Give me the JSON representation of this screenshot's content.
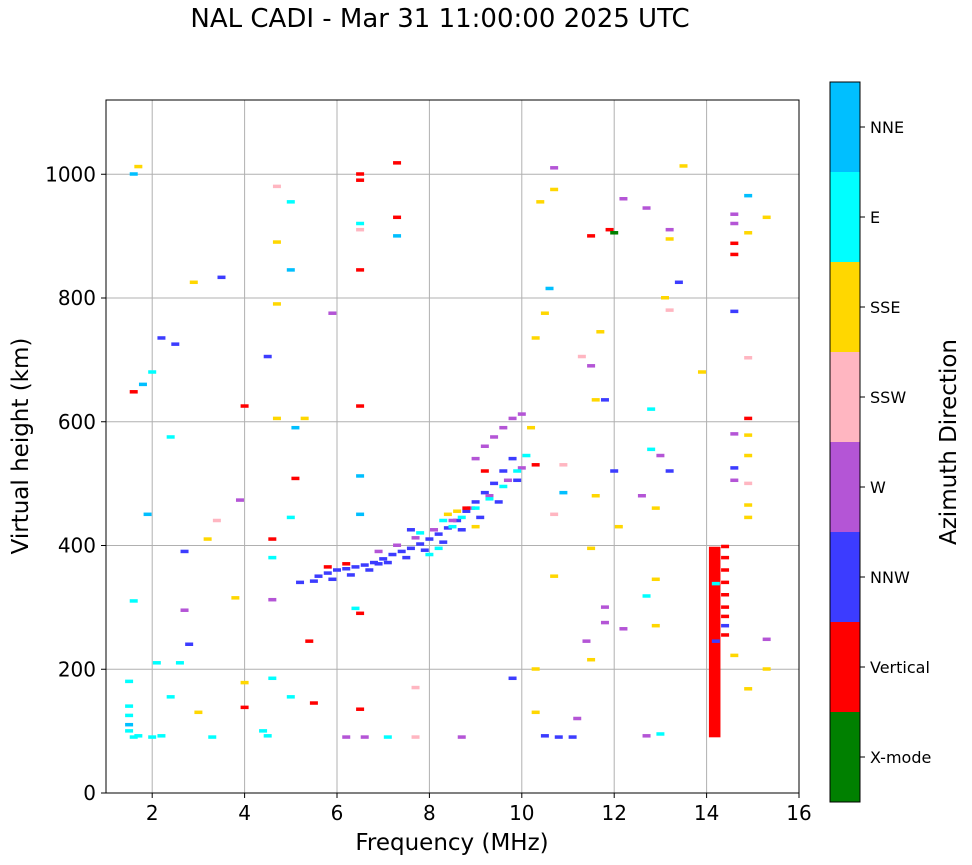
{
  "chart_data": {
    "type": "scatter",
    "title": "NAL CADI - Mar 31 11:00:00 2025 UTC",
    "xlabel": "Frequency (MHz)",
    "ylabel": "Virtual height (km)",
    "xlim": [
      1.0,
      16.0
    ],
    "ylim": [
      0,
      1120
    ],
    "xticks": [
      2,
      4,
      6,
      8,
      10,
      12,
      14,
      16
    ],
    "yticks": [
      0,
      200,
      400,
      600,
      800,
      1000
    ],
    "grid": true,
    "colorbar": {
      "label": "Azimuth Direction",
      "categories": [
        {
          "name": "X-mode",
          "color": "#008000"
        },
        {
          "name": "Vertical",
          "color": "#ff0000"
        },
        {
          "name": "NNW",
          "color": "#3c3cff"
        },
        {
          "name": "W",
          "color": "#b455d6"
        },
        {
          "name": "SSW",
          "color": "#ffb6c1"
        },
        {
          "name": "SSE",
          "color": "#ffd700"
        },
        {
          "name": "E",
          "color": "#00ffff"
        },
        {
          "name": "NNE",
          "color": "#00bfff"
        }
      ]
    },
    "vertical_column": {
      "x_start": 14.05,
      "x_end": 14.3,
      "y_start": 90,
      "y_end": 398,
      "direction": "Vertical"
    },
    "points": [
      {
        "x": 5.6,
        "y": 350,
        "d": "NNW"
      },
      {
        "x": 5.8,
        "y": 355,
        "d": "NNW"
      },
      {
        "x": 6.0,
        "y": 360,
        "d": "NNW"
      },
      {
        "x": 6.2,
        "y": 362,
        "d": "NNW"
      },
      {
        "x": 6.4,
        "y": 365,
        "d": "NNW"
      },
      {
        "x": 6.6,
        "y": 368,
        "d": "NNW"
      },
      {
        "x": 6.8,
        "y": 372,
        "d": "NNW"
      },
      {
        "x": 7.0,
        "y": 378,
        "d": "NNW"
      },
      {
        "x": 7.2,
        "y": 385,
        "d": "NNW"
      },
      {
        "x": 7.4,
        "y": 390,
        "d": "NNW"
      },
      {
        "x": 7.6,
        "y": 395,
        "d": "NNW"
      },
      {
        "x": 7.8,
        "y": 402,
        "d": "NNW"
      },
      {
        "x": 8.0,
        "y": 410,
        "d": "NNW"
      },
      {
        "x": 8.2,
        "y": 418,
        "d": "NNW"
      },
      {
        "x": 8.4,
        "y": 428,
        "d": "NNW"
      },
      {
        "x": 8.6,
        "y": 440,
        "d": "NNW"
      },
      {
        "x": 8.8,
        "y": 455,
        "d": "NNW"
      },
      {
        "x": 9.0,
        "y": 470,
        "d": "NNW"
      },
      {
        "x": 9.2,
        "y": 485,
        "d": "NNW"
      },
      {
        "x": 9.4,
        "y": 500,
        "d": "NNW"
      },
      {
        "x": 9.6,
        "y": 520,
        "d": "NNW"
      },
      {
        "x": 9.8,
        "y": 540,
        "d": "NNW"
      },
      {
        "x": 5.5,
        "y": 342,
        "d": "NNW"
      },
      {
        "x": 5.9,
        "y": 345,
        "d": "NNW"
      },
      {
        "x": 6.3,
        "y": 352,
        "d": "NNW"
      },
      {
        "x": 6.7,
        "y": 360,
        "d": "NNW"
      },
      {
        "x": 7.1,
        "y": 372,
        "d": "NNW"
      },
      {
        "x": 7.5,
        "y": 380,
        "d": "NNW"
      },
      {
        "x": 7.9,
        "y": 392,
        "d": "NNW"
      },
      {
        "x": 8.3,
        "y": 405,
        "d": "NNW"
      },
      {
        "x": 8.7,
        "y": 425,
        "d": "NNW"
      },
      {
        "x": 9.1,
        "y": 445,
        "d": "NNW"
      },
      {
        "x": 9.5,
        "y": 470,
        "d": "NNW"
      },
      {
        "x": 9.9,
        "y": 505,
        "d": "NNW"
      },
      {
        "x": 6.9,
        "y": 390,
        "d": "W"
      },
      {
        "x": 7.3,
        "y": 400,
        "d": "W"
      },
      {
        "x": 7.7,
        "y": 412,
        "d": "W"
      },
      {
        "x": 8.1,
        "y": 425,
        "d": "W"
      },
      {
        "x": 8.5,
        "y": 440,
        "d": "W"
      },
      {
        "x": 8.9,
        "y": 460,
        "d": "W"
      },
      {
        "x": 9.3,
        "y": 480,
        "d": "W"
      },
      {
        "x": 9.7,
        "y": 505,
        "d": "W"
      },
      {
        "x": 10.0,
        "y": 525,
        "d": "W"
      },
      {
        "x": 9.4,
        "y": 575,
        "d": "W"
      },
      {
        "x": 9.6,
        "y": 590,
        "d": "W"
      },
      {
        "x": 9.8,
        "y": 605,
        "d": "W"
      },
      {
        "x": 9.2,
        "y": 560,
        "d": "W"
      },
      {
        "x": 9.0,
        "y": 540,
        "d": "W"
      },
      {
        "x": 8.3,
        "y": 440,
        "d": "E"
      },
      {
        "x": 8.5,
        "y": 430,
        "d": "E"
      },
      {
        "x": 8.7,
        "y": 445,
        "d": "E"
      },
      {
        "x": 9.0,
        "y": 460,
        "d": "E"
      },
      {
        "x": 9.3,
        "y": 475,
        "d": "E"
      },
      {
        "x": 9.6,
        "y": 495,
        "d": "E"
      },
      {
        "x": 9.9,
        "y": 520,
        "d": "E"
      },
      {
        "x": 10.1,
        "y": 545,
        "d": "E"
      },
      {
        "x": 8.2,
        "y": 395,
        "d": "E"
      },
      {
        "x": 7.8,
        "y": 420,
        "d": "E"
      },
      {
        "x": 8.6,
        "y": 455,
        "d": "SSE"
      },
      {
        "x": 8.4,
        "y": 450,
        "d": "SSE"
      },
      {
        "x": 9.0,
        "y": 430,
        "d": "SSE"
      },
      {
        "x": 10.2,
        "y": 590,
        "d": "SSE"
      },
      {
        "x": 6.2,
        "y": 370,
        "d": "Vertical"
      },
      {
        "x": 5.8,
        "y": 365,
        "d": "Vertical"
      },
      {
        "x": 8.8,
        "y": 460,
        "d": "Vertical"
      },
      {
        "x": 9.2,
        "y": 520,
        "d": "Vertical"
      },
      {
        "x": 10.3,
        "y": 530,
        "d": "Vertical"
      },
      {
        "x": 1.5,
        "y": 140,
        "d": "E"
      },
      {
        "x": 1.5,
        "y": 125,
        "d": "E"
      },
      {
        "x": 1.5,
        "y": 110,
        "d": "NNE"
      },
      {
        "x": 1.5,
        "y": 100,
        "d": "E"
      },
      {
        "x": 1.6,
        "y": 90,
        "d": "E"
      },
      {
        "x": 1.7,
        "y": 92,
        "d": "E"
      },
      {
        "x": 1.5,
        "y": 180,
        "d": "E"
      },
      {
        "x": 1.6,
        "y": 310,
        "d": "E"
      },
      {
        "x": 1.9,
        "y": 450,
        "d": "NNE"
      },
      {
        "x": 2.0,
        "y": 90,
        "d": "E"
      },
      {
        "x": 2.2,
        "y": 92,
        "d": "E"
      },
      {
        "x": 2.1,
        "y": 210,
        "d": "E"
      },
      {
        "x": 2.4,
        "y": 575,
        "d": "E"
      },
      {
        "x": 2.2,
        "y": 735,
        "d": "NNW"
      },
      {
        "x": 2.5,
        "y": 725,
        "d": "NNW"
      },
      {
        "x": 1.6,
        "y": 1000,
        "d": "NNE"
      },
      {
        "x": 1.7,
        "y": 1012,
        "d": "SSE"
      },
      {
        "x": 3.0,
        "y": 130,
        "d": "SSE"
      },
      {
        "x": 3.3,
        "y": 90,
        "d": "E"
      },
      {
        "x": 3.2,
        "y": 410,
        "d": "SSE"
      },
      {
        "x": 3.4,
        "y": 440,
        "d": "SSW"
      },
      {
        "x": 3.5,
        "y": 833,
        "d": "NNW"
      },
      {
        "x": 2.9,
        "y": 825,
        "d": "SSE"
      },
      {
        "x": 4.0,
        "y": 625,
        "d": "Vertical"
      },
      {
        "x": 4.0,
        "y": 138,
        "d": "Vertical"
      },
      {
        "x": 4.0,
        "y": 178,
        "d": "SSE"
      },
      {
        "x": 4.4,
        "y": 100,
        "d": "E"
      },
      {
        "x": 4.5,
        "y": 92,
        "d": "E"
      },
      {
        "x": 4.6,
        "y": 185,
        "d": "E"
      },
      {
        "x": 4.6,
        "y": 410,
        "d": "Vertical"
      },
      {
        "x": 4.6,
        "y": 380,
        "d": "E"
      },
      {
        "x": 4.6,
        "y": 312,
        "d": "W"
      },
      {
        "x": 4.7,
        "y": 605,
        "d": "SSE"
      },
      {
        "x": 4.7,
        "y": 790,
        "d": "SSE"
      },
      {
        "x": 4.7,
        "y": 890,
        "d": "SSE"
      },
      {
        "x": 4.7,
        "y": 980,
        "d": "SSW"
      },
      {
        "x": 5.0,
        "y": 955,
        "d": "E"
      },
      {
        "x": 5.0,
        "y": 845,
        "d": "NNE"
      },
      {
        "x": 5.0,
        "y": 445,
        "d": "E"
      },
      {
        "x": 5.1,
        "y": 508,
        "d": "Vertical"
      },
      {
        "x": 5.0,
        "y": 155,
        "d": "E"
      },
      {
        "x": 5.5,
        "y": 145,
        "d": "Vertical"
      },
      {
        "x": 5.9,
        "y": 775,
        "d": "W"
      },
      {
        "x": 6.5,
        "y": 1000,
        "d": "Vertical"
      },
      {
        "x": 6.5,
        "y": 990,
        "d": "Vertical"
      },
      {
        "x": 6.5,
        "y": 920,
        "d": "E"
      },
      {
        "x": 6.5,
        "y": 910,
        "d": "SSW"
      },
      {
        "x": 6.5,
        "y": 845,
        "d": "Vertical"
      },
      {
        "x": 6.5,
        "y": 625,
        "d": "Vertical"
      },
      {
        "x": 6.5,
        "y": 512,
        "d": "NNE"
      },
      {
        "x": 6.5,
        "y": 450,
        "d": "NNE"
      },
      {
        "x": 6.5,
        "y": 290,
        "d": "Vertical"
      },
      {
        "x": 6.4,
        "y": 298,
        "d": "E"
      },
      {
        "x": 6.5,
        "y": 135,
        "d": "Vertical"
      },
      {
        "x": 6.2,
        "y": 90,
        "d": "W"
      },
      {
        "x": 6.6,
        "y": 90,
        "d": "W"
      },
      {
        "x": 7.3,
        "y": 930,
        "d": "Vertical"
      },
      {
        "x": 7.3,
        "y": 1018,
        "d": "Vertical"
      },
      {
        "x": 7.3,
        "y": 900,
        "d": "NNE"
      },
      {
        "x": 7.1,
        "y": 90,
        "d": "E"
      },
      {
        "x": 7.7,
        "y": 170,
        "d": "SSW"
      },
      {
        "x": 7.7,
        "y": 90,
        "d": "SSW"
      },
      {
        "x": 8.7,
        "y": 90,
        "d": "W"
      },
      {
        "x": 9.8,
        "y": 185,
        "d": "NNW"
      },
      {
        "x": 10.0,
        "y": 612,
        "d": "W"
      },
      {
        "x": 10.3,
        "y": 735,
        "d": "SSE"
      },
      {
        "x": 10.5,
        "y": 775,
        "d": "SSE"
      },
      {
        "x": 10.6,
        "y": 815,
        "d": "NNE"
      },
      {
        "x": 10.4,
        "y": 955,
        "d": "SSE"
      },
      {
        "x": 10.7,
        "y": 975,
        "d": "SSE"
      },
      {
        "x": 10.7,
        "y": 1010,
        "d": "W"
      },
      {
        "x": 10.7,
        "y": 350,
        "d": "SSE"
      },
      {
        "x": 10.9,
        "y": 485,
        "d": "NNE"
      },
      {
        "x": 10.3,
        "y": 200,
        "d": "SSE"
      },
      {
        "x": 10.3,
        "y": 130,
        "d": "SSE"
      },
      {
        "x": 10.5,
        "y": 92,
        "d": "NNW"
      },
      {
        "x": 10.8,
        "y": 90,
        "d": "NNW"
      },
      {
        "x": 11.1,
        "y": 90,
        "d": "NNW"
      },
      {
        "x": 11.5,
        "y": 215,
        "d": "SSE"
      },
      {
        "x": 11.5,
        "y": 395,
        "d": "SSE"
      },
      {
        "x": 11.5,
        "y": 900,
        "d": "Vertical"
      },
      {
        "x": 11.5,
        "y": 690,
        "d": "W"
      },
      {
        "x": 11.6,
        "y": 635,
        "d": "SSE"
      },
      {
        "x": 11.8,
        "y": 635,
        "d": "NNW"
      },
      {
        "x": 11.9,
        "y": 910,
        "d": "Vertical"
      },
      {
        "x": 12.0,
        "y": 905,
        "d": "X-mode"
      },
      {
        "x": 12.2,
        "y": 960,
        "d": "W"
      },
      {
        "x": 11.8,
        "y": 300,
        "d": "W"
      },
      {
        "x": 11.8,
        "y": 275,
        "d": "W"
      },
      {
        "x": 12.0,
        "y": 520,
        "d": "NNW"
      },
      {
        "x": 12.2,
        "y": 265,
        "d": "W"
      },
      {
        "x": 11.2,
        "y": 120,
        "d": "W"
      },
      {
        "x": 12.7,
        "y": 945,
        "d": "W"
      },
      {
        "x": 12.8,
        "y": 620,
        "d": "E"
      },
      {
        "x": 12.8,
        "y": 555,
        "d": "E"
      },
      {
        "x": 12.9,
        "y": 460,
        "d": "SSE"
      },
      {
        "x": 12.9,
        "y": 345,
        "d": "SSE"
      },
      {
        "x": 12.9,
        "y": 270,
        "d": "SSE"
      },
      {
        "x": 12.7,
        "y": 318,
        "d": "E"
      },
      {
        "x": 12.7,
        "y": 92,
        "d": "W"
      },
      {
        "x": 13.0,
        "y": 95,
        "d": "E"
      },
      {
        "x": 13.2,
        "y": 910,
        "d": "W"
      },
      {
        "x": 13.2,
        "y": 895,
        "d": "SSE"
      },
      {
        "x": 13.2,
        "y": 780,
        "d": "SSW"
      },
      {
        "x": 13.2,
        "y": 520,
        "d": "NNW"
      },
      {
        "x": 13.4,
        "y": 825,
        "d": "NNW"
      },
      {
        "x": 13.5,
        "y": 1013,
        "d": "SSE"
      },
      {
        "x": 13.9,
        "y": 680,
        "d": "SSE"
      },
      {
        "x": 14.6,
        "y": 935,
        "d": "W"
      },
      {
        "x": 14.6,
        "y": 920,
        "d": "W"
      },
      {
        "x": 14.6,
        "y": 888,
        "d": "Vertical"
      },
      {
        "x": 14.6,
        "y": 870,
        "d": "Vertical"
      },
      {
        "x": 14.6,
        "y": 778,
        "d": "NNW"
      },
      {
        "x": 14.6,
        "y": 580,
        "d": "W"
      },
      {
        "x": 14.6,
        "y": 525,
        "d": "NNW"
      },
      {
        "x": 14.6,
        "y": 505,
        "d": "W"
      },
      {
        "x": 14.6,
        "y": 222,
        "d": "SSE"
      },
      {
        "x": 14.9,
        "y": 965,
        "d": "NNE"
      },
      {
        "x": 14.9,
        "y": 905,
        "d": "SSE"
      },
      {
        "x": 14.9,
        "y": 605,
        "d": "Vertical"
      },
      {
        "x": 14.9,
        "y": 578,
        "d": "SSE"
      },
      {
        "x": 14.9,
        "y": 545,
        "d": "SSE"
      },
      {
        "x": 14.9,
        "y": 500,
        "d": "SSW"
      },
      {
        "x": 14.9,
        "y": 465,
        "d": "SSE"
      },
      {
        "x": 14.9,
        "y": 445,
        "d": "SSE"
      },
      {
        "x": 14.9,
        "y": 168,
        "d": "SSE"
      },
      {
        "x": 14.9,
        "y": 703,
        "d": "SSW"
      },
      {
        "x": 15.3,
        "y": 930,
        "d": "SSE"
      },
      {
        "x": 15.3,
        "y": 248,
        "d": "W"
      },
      {
        "x": 15.3,
        "y": 200,
        "d": "SSE"
      },
      {
        "x": 14.4,
        "y": 398,
        "d": "Vertical"
      },
      {
        "x": 14.4,
        "y": 380,
        "d": "Vertical"
      },
      {
        "x": 14.4,
        "y": 360,
        "d": "Vertical"
      },
      {
        "x": 14.4,
        "y": 340,
        "d": "Vertical"
      },
      {
        "x": 14.4,
        "y": 320,
        "d": "Vertical"
      },
      {
        "x": 14.4,
        "y": 300,
        "d": "Vertical"
      },
      {
        "x": 14.4,
        "y": 285,
        "d": "Vertical"
      },
      {
        "x": 14.4,
        "y": 270,
        "d": "NNW"
      },
      {
        "x": 14.4,
        "y": 255,
        "d": "Vertical"
      },
      {
        "x": 14.2,
        "y": 338,
        "d": "E"
      },
      {
        "x": 14.2,
        "y": 245,
        "d": "NNW"
      },
      {
        "x": 2.7,
        "y": 390,
        "d": "NNW"
      },
      {
        "x": 2.8,
        "y": 240,
        "d": "NNW"
      },
      {
        "x": 2.7,
        "y": 295,
        "d": "W"
      },
      {
        "x": 3.9,
        "y": 473,
        "d": "W"
      },
      {
        "x": 5.4,
        "y": 245,
        "d": "Vertical"
      },
      {
        "x": 5.2,
        "y": 340,
        "d": "NNW"
      },
      {
        "x": 5.3,
        "y": 605,
        "d": "SSE"
      },
      {
        "x": 5.1,
        "y": 590,
        "d": "NNE"
      },
      {
        "x": 4.5,
        "y": 705,
        "d": "NNW"
      },
      {
        "x": 1.8,
        "y": 660,
        "d": "NNE"
      },
      {
        "x": 1.6,
        "y": 648,
        "d": "Vertical"
      },
      {
        "x": 2.0,
        "y": 680,
        "d": "E"
      },
      {
        "x": 2.4,
        "y": 155,
        "d": "E"
      },
      {
        "x": 2.6,
        "y": 210,
        "d": "E"
      },
      {
        "x": 3.8,
        "y": 315,
        "d": "SSE"
      },
      {
        "x": 6.9,
        "y": 370,
        "d": "NNW"
      },
      {
        "x": 7.6,
        "y": 425,
        "d": "NNW"
      },
      {
        "x": 8.0,
        "y": 385,
        "d": "E"
      },
      {
        "x": 10.7,
        "y": 450,
        "d": "SSW"
      },
      {
        "x": 10.9,
        "y": 530,
        "d": "SSW"
      },
      {
        "x": 11.3,
        "y": 705,
        "d": "SSW"
      },
      {
        "x": 11.7,
        "y": 745,
        "d": "SSE"
      },
      {
        "x": 11.6,
        "y": 480,
        "d": "SSE"
      },
      {
        "x": 11.4,
        "y": 245,
        "d": "W"
      },
      {
        "x": 12.1,
        "y": 430,
        "d": "SSE"
      },
      {
        "x": 12.6,
        "y": 480,
        "d": "W"
      },
      {
        "x": 13.0,
        "y": 545,
        "d": "W"
      },
      {
        "x": 13.1,
        "y": 800,
        "d": "SSE"
      }
    ]
  }
}
